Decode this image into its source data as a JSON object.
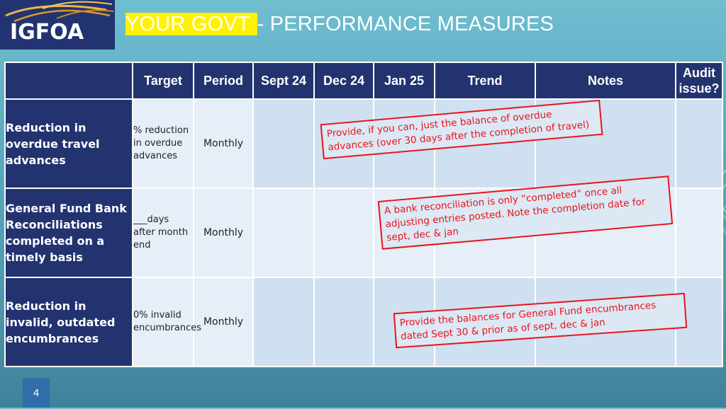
{
  "brand": {
    "logo_text": "IGFOA",
    "accent": "#213371"
  },
  "title": {
    "highlight": "YOUR GOVT ",
    "rest": "-  PERFORMANCE MEASURES"
  },
  "table": {
    "headers": [
      "Target",
      "Period",
      "Sept 24",
      "Dec 24",
      "Jan 25",
      "Trend",
      "Notes",
      "Audit issue?"
    ],
    "rows": [
      {
        "measure": "Reduction in overdue travel advances",
        "target": "% reduction in overdue advances",
        "period": "Monthly"
      },
      {
        "measure": "General Fund Bank Reconciliations completed on a timely basis",
        "target": "___days after month end",
        "period": "Monthly"
      },
      {
        "measure": "Reduction in invalid, outdated encumbrances",
        "target": "0% invalid encumbrances",
        "period": "Monthly"
      }
    ]
  },
  "annotations": [
    {
      "text": "Provide, if you can, just the balance of overdue advances (over 30 days after the completion of travel)",
      "color": "#e8141b"
    },
    {
      "text": "A bank reconciliation is only “completed” once all adjusting entries posted.  Note the completion date for sept, dec & jan",
      "color": "#e8141b"
    },
    {
      "text": "Provide the balances for General Fund encumbrances dated Sept 30 & prior as of sept, dec & jan",
      "color": "#e8141b"
    }
  ],
  "page_number": "4"
}
